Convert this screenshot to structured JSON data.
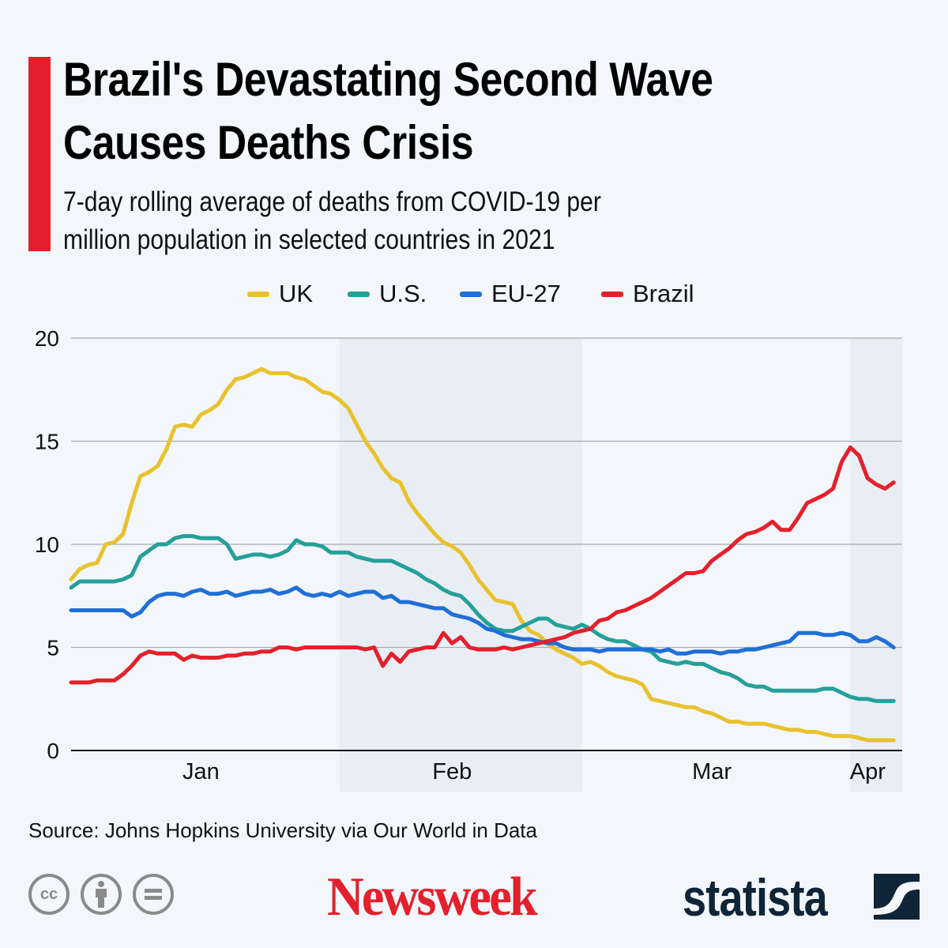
{
  "header": {
    "title_lines": [
      "Brazil's Devastating Second Wave",
      "Causes Deaths Crisis"
    ],
    "subtitle_lines": [
      "7-day rolling average of deaths from COVID-19 per",
      "million population in selected countries in 2021"
    ],
    "accent_color": "#e3202c"
  },
  "footer": {
    "source": "Source: Johns Hopkins University via Our World in Data",
    "license_icons": [
      "creative-commons-icon",
      "attribution-icon",
      "no-derivatives-icon"
    ],
    "logos": [
      "Newsweek",
      "statista"
    ]
  },
  "chart_data": {
    "type": "line",
    "title": "",
    "xlabel": "",
    "ylabel": "",
    "ylim": [
      0,
      20
    ],
    "yticks": [
      0,
      5,
      10,
      15,
      20
    ],
    "xtick_labels": [
      "Jan",
      "Feb",
      "Mar",
      "Apr"
    ],
    "grid": "horizontal",
    "legend_placement": "top",
    "shaded_months": [
      "Feb",
      "Apr"
    ],
    "x": [
      "2021-01-01",
      "2021-01-02",
      "2021-01-03",
      "2021-01-04",
      "2021-01-05",
      "2021-01-06",
      "2021-01-07",
      "2021-01-08",
      "2021-01-09",
      "2021-01-10",
      "2021-01-11",
      "2021-01-12",
      "2021-01-13",
      "2021-01-14",
      "2021-01-15",
      "2021-01-16",
      "2021-01-17",
      "2021-01-18",
      "2021-01-19",
      "2021-01-20",
      "2021-01-21",
      "2021-01-22",
      "2021-01-23",
      "2021-01-24",
      "2021-01-25",
      "2021-01-26",
      "2021-01-27",
      "2021-01-28",
      "2021-01-29",
      "2021-01-30",
      "2021-01-31",
      "2021-02-01",
      "2021-02-02",
      "2021-02-03",
      "2021-02-04",
      "2021-02-05",
      "2021-02-06",
      "2021-02-07",
      "2021-02-08",
      "2021-02-09",
      "2021-02-10",
      "2021-02-11",
      "2021-02-12",
      "2021-02-13",
      "2021-02-14",
      "2021-02-15",
      "2021-02-16",
      "2021-02-17",
      "2021-02-18",
      "2021-02-19",
      "2021-02-20",
      "2021-02-21",
      "2021-02-22",
      "2021-02-23",
      "2021-02-24",
      "2021-02-25",
      "2021-02-26",
      "2021-02-27",
      "2021-02-28",
      "2021-03-01",
      "2021-03-02",
      "2021-03-03",
      "2021-03-04",
      "2021-03-05",
      "2021-03-06",
      "2021-03-07",
      "2021-03-08",
      "2021-03-09",
      "2021-03-10",
      "2021-03-11",
      "2021-03-12",
      "2021-03-13",
      "2021-03-14",
      "2021-03-15",
      "2021-03-16",
      "2021-03-17",
      "2021-03-18",
      "2021-03-19",
      "2021-03-20",
      "2021-03-21",
      "2021-03-22",
      "2021-03-23",
      "2021-03-24",
      "2021-03-25",
      "2021-03-26",
      "2021-03-27",
      "2021-03-28",
      "2021-03-29",
      "2021-03-30",
      "2021-03-31",
      "2021-04-01",
      "2021-04-02",
      "2021-04-03",
      "2021-04-04",
      "2021-04-05",
      "2021-04-06"
    ],
    "series": [
      {
        "name": "UK",
        "color": "#e8c22e",
        "values": [
          8.3,
          8.8,
          9.0,
          9.1,
          10.0,
          10.1,
          10.5,
          12.0,
          13.3,
          13.5,
          13.8,
          14.6,
          15.7,
          15.8,
          15.7,
          16.3,
          16.5,
          16.8,
          17.5,
          18.0,
          18.1,
          18.3,
          18.5,
          18.3,
          18.3,
          18.3,
          18.1,
          18.0,
          17.7,
          17.4,
          17.3,
          17.0,
          16.6,
          15.8,
          15.0,
          14.4,
          13.7,
          13.2,
          13.0,
          12.1,
          11.5,
          11.0,
          10.5,
          10.1,
          9.9,
          9.6,
          9.0,
          8.3,
          7.8,
          7.3,
          7.2,
          7.1,
          6.3,
          5.8,
          5.6,
          5.2,
          4.9,
          4.7,
          4.5,
          4.2,
          4.3,
          4.1,
          3.8,
          3.6,
          3.5,
          3.4,
          3.2,
          2.5,
          2.4,
          2.3,
          2.2,
          2.1,
          2.1,
          1.9,
          1.8,
          1.6,
          1.4,
          1.4,
          1.3,
          1.3,
          1.3,
          1.2,
          1.1,
          1.0,
          1.0,
          0.9,
          0.9,
          0.8,
          0.7,
          0.7,
          0.7,
          0.6,
          0.5,
          0.5,
          0.5,
          0.5
        ]
      },
      {
        "name": "U.S.",
        "color": "#25a099",
        "values": [
          7.9,
          8.2,
          8.2,
          8.2,
          8.2,
          8.2,
          8.3,
          8.5,
          9.4,
          9.7,
          10.0,
          10.0,
          10.3,
          10.4,
          10.4,
          10.3,
          10.3,
          10.3,
          10.0,
          9.3,
          9.4,
          9.5,
          9.5,
          9.4,
          9.5,
          9.7,
          10.2,
          10.0,
          10.0,
          9.9,
          9.6,
          9.6,
          9.6,
          9.4,
          9.3,
          9.2,
          9.2,
          9.2,
          9.0,
          8.8,
          8.6,
          8.3,
          8.1,
          7.8,
          7.6,
          7.5,
          7.1,
          6.6,
          6.2,
          5.9,
          5.8,
          5.8,
          6.0,
          6.2,
          6.4,
          6.4,
          6.1,
          6.0,
          5.9,
          6.1,
          5.9,
          5.6,
          5.4,
          5.3,
          5.3,
          5.1,
          4.9,
          4.8,
          4.4,
          4.3,
          4.2,
          4.3,
          4.2,
          4.2,
          4.0,
          3.8,
          3.7,
          3.5,
          3.2,
          3.1,
          3.1,
          2.9,
          2.9,
          2.9,
          2.9,
          2.9,
          2.9,
          3.0,
          3.0,
          2.8,
          2.6,
          2.5,
          2.5,
          2.4,
          2.4,
          2.4
        ]
      },
      {
        "name": "EU-27",
        "color": "#1f6fd6",
        "values": [
          6.8,
          6.8,
          6.8,
          6.8,
          6.8,
          6.8,
          6.8,
          6.5,
          6.7,
          7.2,
          7.5,
          7.6,
          7.6,
          7.5,
          7.7,
          7.8,
          7.6,
          7.6,
          7.7,
          7.5,
          7.6,
          7.7,
          7.7,
          7.8,
          7.6,
          7.7,
          7.9,
          7.6,
          7.5,
          7.6,
          7.5,
          7.7,
          7.5,
          7.6,
          7.7,
          7.7,
          7.4,
          7.5,
          7.2,
          7.2,
          7.1,
          7.0,
          6.9,
          6.9,
          6.6,
          6.5,
          6.4,
          6.2,
          5.9,
          5.8,
          5.6,
          5.5,
          5.4,
          5.4,
          5.3,
          5.2,
          5.2,
          5.0,
          4.9,
          4.9,
          4.9,
          4.8,
          4.9,
          4.9,
          4.9,
          4.9,
          4.9,
          4.9,
          4.8,
          4.9,
          4.7,
          4.7,
          4.8,
          4.8,
          4.8,
          4.7,
          4.8,
          4.8,
          4.9,
          4.9,
          5.0,
          5.1,
          5.2,
          5.3,
          5.7,
          5.7,
          5.7,
          5.6,
          5.6,
          5.7,
          5.6,
          5.3,
          5.3,
          5.5,
          5.3,
          5.0
        ]
      },
      {
        "name": "Brazil",
        "color": "#e3202c",
        "values": [
          3.3,
          3.3,
          3.3,
          3.4,
          3.4,
          3.4,
          3.7,
          4.1,
          4.6,
          4.8,
          4.7,
          4.7,
          4.7,
          4.4,
          4.6,
          4.5,
          4.5,
          4.5,
          4.6,
          4.6,
          4.7,
          4.7,
          4.8,
          4.8,
          5.0,
          5.0,
          4.9,
          5.0,
          5.0,
          5.0,
          5.0,
          5.0,
          5.0,
          5.0,
          4.9,
          5.0,
          4.1,
          4.7,
          4.3,
          4.8,
          4.9,
          5.0,
          5.0,
          5.7,
          5.2,
          5.5,
          5.0,
          4.9,
          4.9,
          4.9,
          5.0,
          4.9,
          5.0,
          5.1,
          5.2,
          5.3,
          5.4,
          5.5,
          5.7,
          5.8,
          5.9,
          6.3,
          6.4,
          6.7,
          6.8,
          7.0,
          7.2,
          7.4,
          7.7,
          8.0,
          8.3,
          8.6,
          8.6,
          8.7,
          9.2,
          9.5,
          9.8,
          10.2,
          10.5,
          10.6,
          10.8,
          11.1,
          10.7,
          10.7,
          11.3,
          12.0,
          12.2,
          12.4,
          12.7,
          14.0,
          14.7,
          14.3,
          13.2,
          12.9,
          12.7,
          13.0
        ]
      }
    ]
  }
}
